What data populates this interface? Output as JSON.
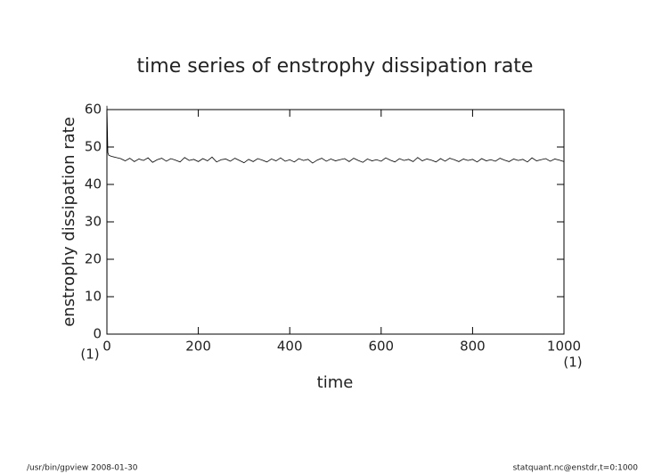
{
  "chart_data": {
    "type": "line",
    "title": "time series of enstrophy dissipation rate",
    "xlabel": "time",
    "ylabel": "enstrophy dissipation rate",
    "xunit": "(1)",
    "yunit": "(1)",
    "footer_left": "/usr/bin/gpview   2008-01-30",
    "footer_right": "statquant.nc@enstdr,t=0:1000",
    "color": "#000000",
    "xlim": [
      0,
      1000
    ],
    "xticks": [
      0,
      200,
      400,
      600,
      800,
      1000
    ],
    "ylim": [
      0,
      60
    ],
    "yticks": [
      0,
      10,
      20,
      30,
      40,
      50,
      60
    ],
    "x": [
      0,
      2,
      4,
      10,
      20,
      30,
      40,
      50,
      60,
      70,
      80,
      90,
      100,
      110,
      120,
      130,
      140,
      150,
      160,
      170,
      180,
      190,
      200,
      210,
      220,
      230,
      240,
      250,
      260,
      270,
      280,
      290,
      300,
      310,
      320,
      330,
      340,
      350,
      360,
      370,
      380,
      390,
      400,
      410,
      420,
      430,
      440,
      450,
      460,
      470,
      480,
      490,
      500,
      510,
      520,
      530,
      540,
      550,
      560,
      570,
      580,
      590,
      600,
      610,
      620,
      630,
      640,
      650,
      660,
      670,
      680,
      690,
      700,
      710,
      720,
      730,
      740,
      750,
      760,
      770,
      780,
      790,
      800,
      810,
      820,
      830,
      840,
      850,
      860,
      870,
      880,
      890,
      900,
      910,
      920,
      930,
      940,
      950,
      960,
      970,
      980,
      990,
      1000
    ],
    "values": [
      61,
      48.5,
      47.8,
      47.5,
      47.2,
      46.9,
      46.3,
      47.0,
      46.1,
      46.8,
      46.4,
      47.1,
      45.9,
      46.6,
      47.0,
      46.2,
      46.9,
      46.5,
      46.0,
      47.2,
      46.4,
      46.7,
      46.1,
      46.9,
      46.3,
      47.3,
      46.0,
      46.6,
      46.8,
      46.2,
      47.0,
      46.4,
      45.8,
      46.7,
      46.1,
      46.9,
      46.5,
      46.0,
      46.8,
      46.3,
      47.1,
      46.2,
      46.6,
      46.0,
      46.9,
      46.4,
      46.7,
      45.7,
      46.5,
      47.0,
      46.2,
      46.8,
      46.3,
      46.6,
      46.9,
      46.1,
      47.0,
      46.4,
      45.9,
      46.8,
      46.3,
      46.6,
      46.2,
      47.1,
      46.5,
      46.0,
      46.9,
      46.4,
      46.7,
      46.1,
      47.2,
      46.3,
      46.8,
      46.5,
      46.0,
      46.9,
      46.2,
      47.0,
      46.6,
      46.1,
      46.8,
      46.4,
      46.7,
      46.0,
      46.9,
      46.3,
      46.6,
      46.2,
      47.0,
      46.5,
      46.1,
      46.8,
      46.4,
      46.7,
      46.0,
      47.1,
      46.3,
      46.6,
      46.9,
      46.2,
      46.8,
      46.5,
      46.1
    ]
  }
}
